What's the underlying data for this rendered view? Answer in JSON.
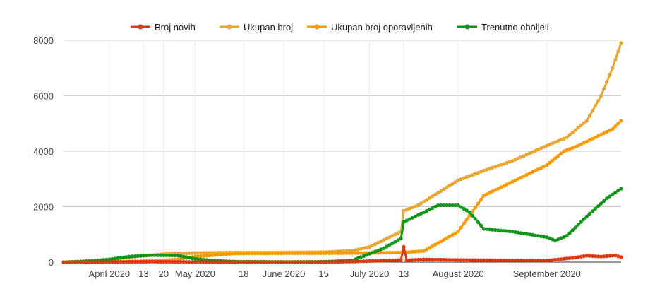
{
  "chart_data": {
    "type": "line",
    "title": "",
    "xlabel": "",
    "ylabel": "",
    "ylim": [
      0,
      8000
    ],
    "yticks": [
      0,
      2000,
      4000,
      6000,
      8000
    ],
    "x_range": [
      "2020-03-16",
      "2020-09-27"
    ],
    "xtick_labels": [
      {
        "date": "2020-04-01",
        "label": "April 2020"
      },
      {
        "date": "2020-04-13",
        "label": "13"
      },
      {
        "date": "2020-04-20",
        "label": "20"
      },
      {
        "date": "2020-05-01",
        "label": "May 2020"
      },
      {
        "date": "2020-05-18",
        "label": "18"
      },
      {
        "date": "2020-06-01",
        "label": "June 2020"
      },
      {
        "date": "2020-06-15",
        "label": "15"
      },
      {
        "date": "2020-07-01",
        "label": "July 2020"
      },
      {
        "date": "2020-07-13",
        "label": "13"
      },
      {
        "date": "2020-08-01",
        "label": "August 2020"
      },
      {
        "date": "2020-09-01",
        "label": "September 2020"
      }
    ],
    "grid": "horizontal",
    "legend_position": "top",
    "series": [
      {
        "name": "Broj novih",
        "color": "#dc3912",
        "points": [
          [
            "2020-03-16",
            0
          ],
          [
            "2020-04-01",
            8
          ],
          [
            "2020-04-15",
            15
          ],
          [
            "2020-05-01",
            8
          ],
          [
            "2020-05-15",
            3
          ],
          [
            "2020-06-01",
            2
          ],
          [
            "2020-06-15",
            4
          ],
          [
            "2020-06-25",
            20
          ],
          [
            "2020-07-01",
            40
          ],
          [
            "2020-07-08",
            60
          ],
          [
            "2020-07-12",
            80
          ],
          [
            "2020-07-13",
            550
          ],
          [
            "2020-07-14",
            70
          ],
          [
            "2020-07-20",
            100
          ],
          [
            "2020-08-01",
            80
          ],
          [
            "2020-08-15",
            70
          ],
          [
            "2020-09-01",
            60
          ],
          [
            "2020-09-10",
            150
          ],
          [
            "2020-09-15",
            230
          ],
          [
            "2020-09-20",
            200
          ],
          [
            "2020-09-25",
            240
          ],
          [
            "2020-09-27",
            180
          ]
        ]
      },
      {
        "name": "Ukupan broj",
        "color": "#e8a531",
        "points": [
          [
            "2020-03-16",
            0
          ],
          [
            "2020-03-25",
            15
          ],
          [
            "2020-04-01",
            90
          ],
          [
            "2020-04-10",
            200
          ],
          [
            "2020-04-20",
            290
          ],
          [
            "2020-05-01",
            330
          ],
          [
            "2020-05-15",
            350
          ],
          [
            "2020-06-01",
            350
          ],
          [
            "2020-06-15",
            360
          ],
          [
            "2020-06-25",
            410
          ],
          [
            "2020-07-01",
            550
          ],
          [
            "2020-07-06",
            800
          ],
          [
            "2020-07-12",
            1100
          ],
          [
            "2020-07-13",
            1850
          ],
          [
            "2020-07-18",
            2050
          ],
          [
            "2020-07-25",
            2500
          ],
          [
            "2020-08-01",
            2950
          ],
          [
            "2020-08-10",
            3300
          ],
          [
            "2020-08-20",
            3650
          ],
          [
            "2020-09-01",
            4200
          ],
          [
            "2020-09-08",
            4500
          ],
          [
            "2020-09-12",
            4850
          ],
          [
            "2020-09-15",
            5100
          ],
          [
            "2020-09-20",
            6000
          ],
          [
            "2020-09-24",
            7000
          ],
          [
            "2020-09-27",
            7900
          ]
        ]
      },
      {
        "name": "Ukupan broj oporavljenih",
        "color": "#ff9900",
        "points": [
          [
            "2020-03-16",
            0
          ],
          [
            "2020-04-01",
            10
          ],
          [
            "2020-04-15",
            40
          ],
          [
            "2020-04-25",
            100
          ],
          [
            "2020-05-01",
            200
          ],
          [
            "2020-05-15",
            310
          ],
          [
            "2020-06-01",
            320
          ],
          [
            "2020-06-15",
            320
          ],
          [
            "2020-07-01",
            330
          ],
          [
            "2020-07-13",
            350
          ],
          [
            "2020-07-20",
            400
          ],
          [
            "2020-08-01",
            1100
          ],
          [
            "2020-08-10",
            2400
          ],
          [
            "2020-08-20",
            2900
          ],
          [
            "2020-09-01",
            3500
          ],
          [
            "2020-09-07",
            4000
          ],
          [
            "2020-09-12",
            4200
          ],
          [
            "2020-09-18",
            4500
          ],
          [
            "2020-09-24",
            4800
          ],
          [
            "2020-09-27",
            5100
          ]
        ]
      },
      {
        "name": "Trenutno oboljeli",
        "color": "#109618",
        "points": [
          [
            "2020-03-16",
            0
          ],
          [
            "2020-03-25",
            40
          ],
          [
            "2020-04-01",
            100
          ],
          [
            "2020-04-08",
            200
          ],
          [
            "2020-04-15",
            250
          ],
          [
            "2020-04-25",
            240
          ],
          [
            "2020-05-01",
            120
          ],
          [
            "2020-05-08",
            50
          ],
          [
            "2020-05-15",
            20
          ],
          [
            "2020-06-01",
            10
          ],
          [
            "2020-06-15",
            15
          ],
          [
            "2020-06-25",
            60
          ],
          [
            "2020-07-01",
            300
          ],
          [
            "2020-07-06",
            500
          ],
          [
            "2020-07-12",
            850
          ],
          [
            "2020-07-13",
            1450
          ],
          [
            "2020-07-18",
            1700
          ],
          [
            "2020-07-25",
            2050
          ],
          [
            "2020-08-01",
            2050
          ],
          [
            "2020-08-05",
            1800
          ],
          [
            "2020-08-10",
            1200
          ],
          [
            "2020-08-20",
            1100
          ],
          [
            "2020-09-01",
            900
          ],
          [
            "2020-09-04",
            780
          ],
          [
            "2020-09-08",
            950
          ],
          [
            "2020-09-15",
            1650
          ],
          [
            "2020-09-22",
            2300
          ],
          [
            "2020-09-27",
            2650
          ]
        ]
      }
    ]
  }
}
